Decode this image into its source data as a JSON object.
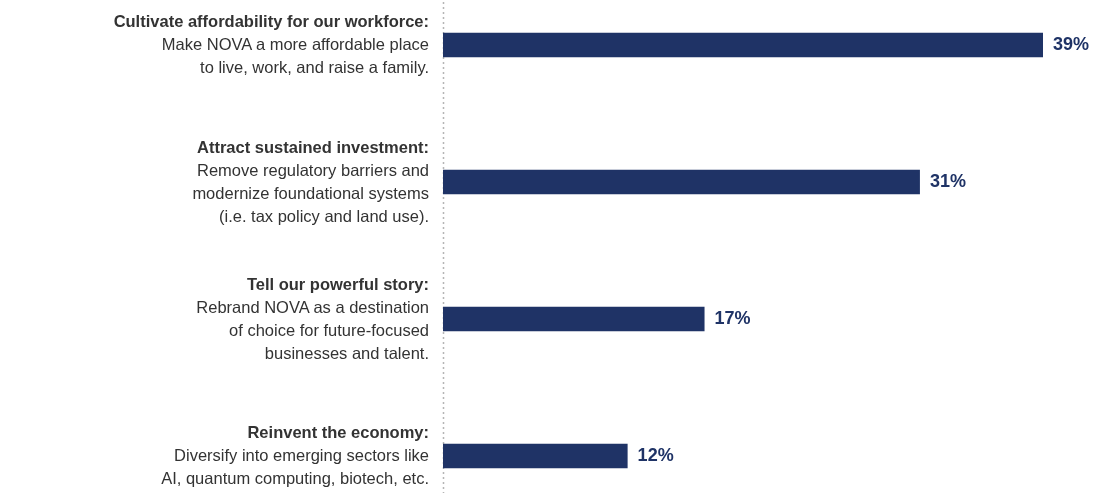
{
  "chart_data": {
    "type": "bar",
    "orientation": "horizontal",
    "categories": [
      "Cultivate affordability for our workforce:\nMake NOVA a more affordable place\nto live, work, and raise a family.",
      "Attract sustained investment:\nRemove regulatory barriers and\nmodernize foundational systems\n(i.e. tax policy and land use).",
      "Tell our powerful story:\nRebrand NOVA as a destination\nof choice for future-focused\nbusinesses and talent.",
      "Reinvent the economy:\nDiversify into emerging sectors like\nAI, quantum computing, biotech, etc."
    ],
    "values": [
      39,
      31,
      17,
      12
    ],
    "value_labels": [
      "39%",
      "31%",
      "17%",
      "12%"
    ],
    "color": "#1f3366"
  }
}
